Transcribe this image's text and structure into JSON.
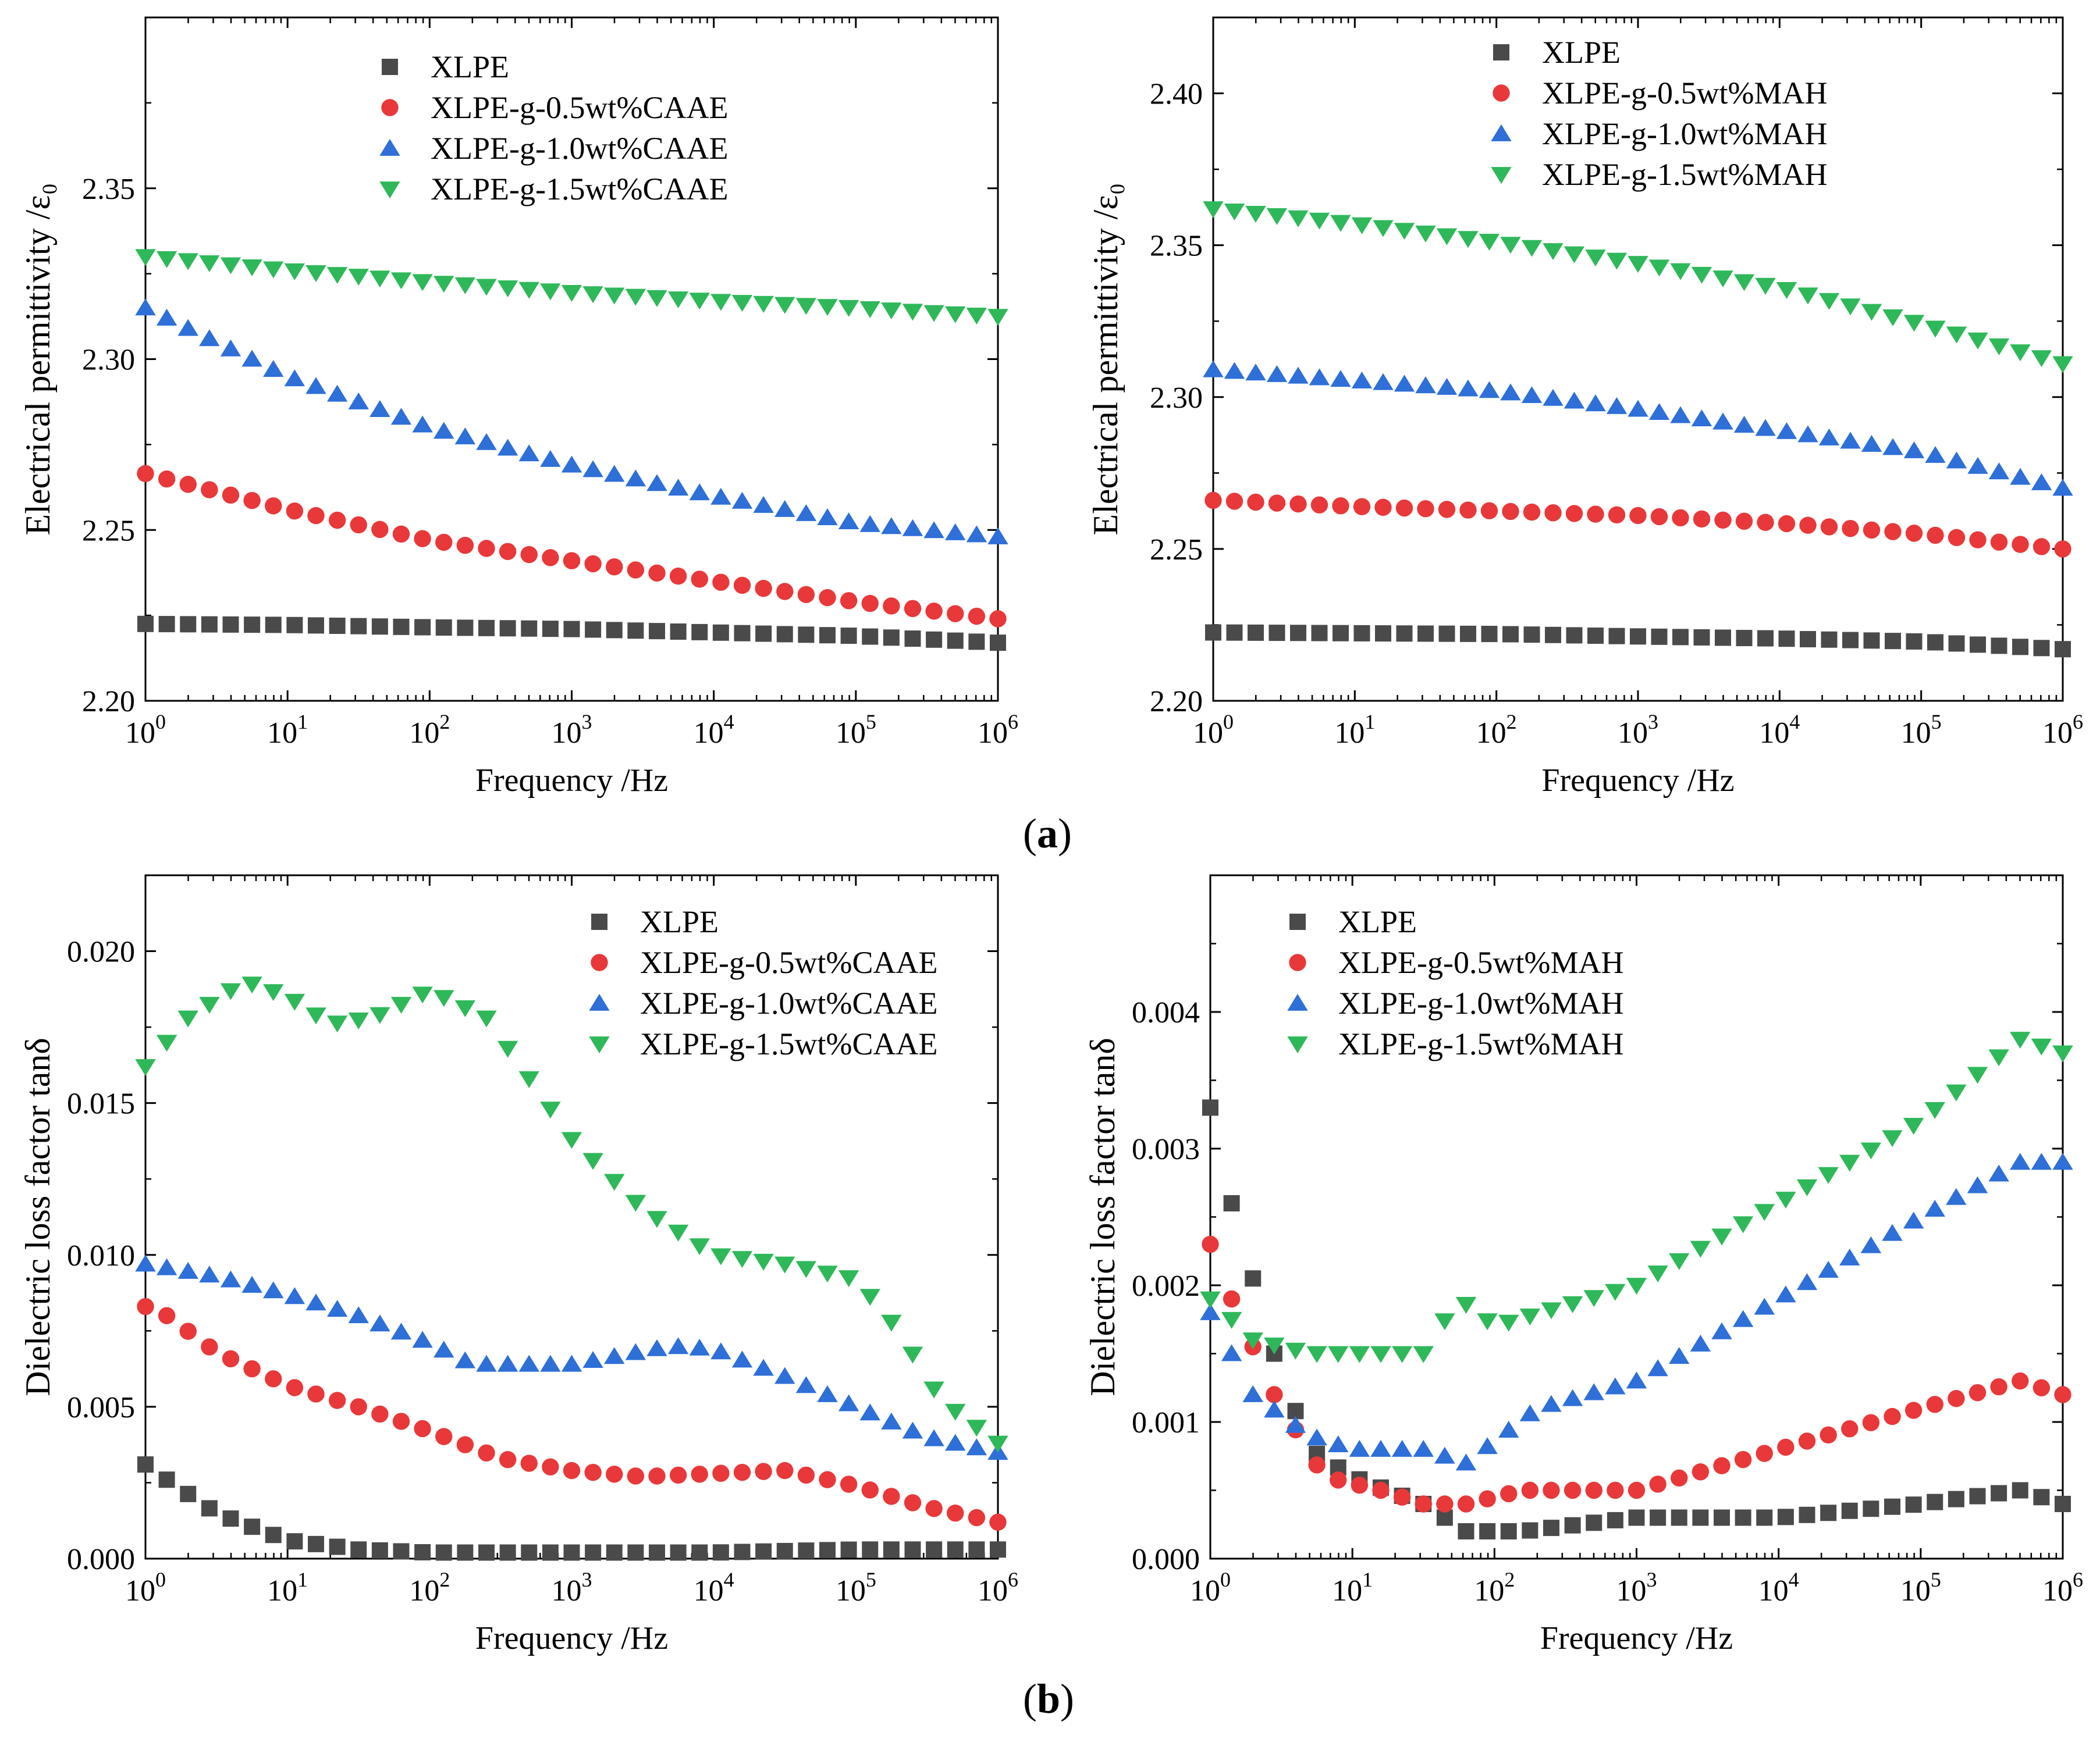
{
  "figure": {
    "panel_a_label": {
      "open": "(",
      "letter": "a",
      "close": ")"
    },
    "panel_b_label": {
      "open": "(",
      "letter": "b",
      "close": ")"
    },
    "marker_colors": {
      "XLPE": "#4a4a4a",
      "0.5": "#e8383a",
      "1.0": "#2e6fd8",
      "1.5": "#2fb85a"
    }
  },
  "chart_data": [
    {
      "id": "a-left",
      "type": "scatter",
      "xscale": "log",
      "xlabel": "Frequency /Hz",
      "ylabel": "Electrical permittivity /ε₀",
      "xlim": [
        1,
        1000000
      ],
      "ylim": [
        2.2,
        2.4
      ],
      "yticks": [
        "2.20",
        "2.25",
        "2.30",
        "2.35"
      ],
      "xticks": [
        {
          "base": "10",
          "exp": "0"
        },
        {
          "base": "10",
          "exp": "1"
        },
        {
          "base": "10",
          "exp": "2"
        },
        {
          "base": "10",
          "exp": "3"
        },
        {
          "base": "10",
          "exp": "4"
        },
        {
          "base": "10",
          "exp": "5"
        },
        {
          "base": "10",
          "exp": "6"
        }
      ],
      "legend_position": "top-left",
      "series": [
        {
          "name": "XLPE",
          "marker": "square",
          "color": "#4a4a4a",
          "x_log": [
            0,
            6
          ],
          "y_knots": [
            [
              0,
              2.2225
            ],
            [
              1,
              2.2222
            ],
            [
              2,
              2.2215
            ],
            [
              3,
              2.221
            ],
            [
              4,
              2.22
            ],
            [
              5,
              2.219
            ],
            [
              6,
              2.217
            ]
          ]
        },
        {
          "name": "XLPE-g-0.5wt%CAAE",
          "marker": "circle",
          "color": "#e8383a",
          "x_log": [
            0,
            6
          ],
          "y_knots": [
            [
              0,
              2.2665
            ],
            [
              1,
              2.256
            ],
            [
              2,
              2.247
            ],
            [
              3,
              2.241
            ],
            [
              4,
              2.235
            ],
            [
              5,
              2.229
            ],
            [
              6,
              2.224
            ]
          ]
        },
        {
          "name": "XLPE-g-1.0wt%CAAE",
          "marker": "triangle-up",
          "color": "#2e6fd8",
          "x_log": [
            0,
            6
          ],
          "y_knots": [
            [
              0,
              2.315
            ],
            [
              1,
              2.295
            ],
            [
              2,
              2.28
            ],
            [
              3,
              2.269
            ],
            [
              4,
              2.26
            ],
            [
              5,
              2.252
            ],
            [
              6,
              2.248
            ]
          ]
        },
        {
          "name": "XLPE-g-1.5wt%CAAE",
          "marker": "triangle-down",
          "color": "#2fb85a",
          "x_log": [
            0,
            6
          ],
          "y_knots": [
            [
              0,
              2.33
            ],
            [
              1,
              2.326
            ],
            [
              2,
              2.3225
            ],
            [
              3,
              2.3195
            ],
            [
              4,
              2.317
            ],
            [
              5,
              2.315
            ],
            [
              6,
              2.3125
            ]
          ]
        }
      ]
    },
    {
      "id": "a-right",
      "type": "scatter",
      "xscale": "log",
      "xlabel": "Frequency /Hz",
      "ylabel": "Electrical permittivity /ε₀",
      "xlim": [
        1,
        1000000
      ],
      "ylim": [
        2.2,
        2.425
      ],
      "yticks": [
        "2.20",
        "2.25",
        "2.30",
        "2.35",
        "2.40"
      ],
      "xticks": [
        {
          "base": "10",
          "exp": "0"
        },
        {
          "base": "10",
          "exp": "1"
        },
        {
          "base": "10",
          "exp": "2"
        },
        {
          "base": "10",
          "exp": "3"
        },
        {
          "base": "10",
          "exp": "4"
        },
        {
          "base": "10",
          "exp": "5"
        },
        {
          "base": "10",
          "exp": "6"
        }
      ],
      "legend_position": "top-center",
      "series": [
        {
          "name": "XLPE",
          "marker": "square",
          "color": "#4a4a4a",
          "x_log": [
            0,
            6
          ],
          "y_knots": [
            [
              0,
              2.2225
            ],
            [
              2,
              2.222
            ],
            [
              3,
              2.2212
            ],
            [
              4,
              2.2205
            ],
            [
              5,
              2.2195
            ],
            [
              6,
              2.217
            ]
          ]
        },
        {
          "name": "XLPE-g-0.5wt%MAH",
          "marker": "circle",
          "color": "#e8383a",
          "x_log": [
            0,
            6
          ],
          "y_knots": [
            [
              0,
              2.266
            ],
            [
              1,
              2.264
            ],
            [
              2,
              2.2625
            ],
            [
              3,
              2.261
            ],
            [
              4,
              2.2585
            ],
            [
              5,
              2.255
            ],
            [
              6,
              2.25
            ]
          ]
        },
        {
          "name": "XLPE-g-1.0wt%MAH",
          "marker": "triangle-up",
          "color": "#2e6fd8",
          "x_log": [
            0,
            6
          ],
          "y_knots": [
            [
              0,
              2.309
            ],
            [
              1,
              2.3055
            ],
            [
              2,
              2.302
            ],
            [
              3,
              2.296
            ],
            [
              4,
              2.289
            ],
            [
              5,
              2.282
            ],
            [
              6,
              2.27
            ]
          ]
        },
        {
          "name": "XLPE-g-1.5wt%MAH",
          "marker": "triangle-down",
          "color": "#2fb85a",
          "x_log": [
            0,
            6
          ],
          "y_knots": [
            [
              0,
              2.362
            ],
            [
              1,
              2.357
            ],
            [
              2,
              2.351
            ],
            [
              3,
              2.344
            ],
            [
              4,
              2.336
            ],
            [
              5,
              2.324
            ],
            [
              6,
              2.311
            ]
          ]
        }
      ]
    },
    {
      "id": "b-left",
      "type": "scatter",
      "xscale": "log",
      "xlabel": "Frequency /Hz",
      "ylabel": "Dielectric loss factor tanδ",
      "xlim": [
        1,
        1000000
      ],
      "ylim": [
        0,
        0.0225
      ],
      "yticks": [
        "0.000",
        "0.005",
        "0.010",
        "0.015",
        "0.020"
      ],
      "xticks": [
        {
          "base": "10",
          "exp": "0"
        },
        {
          "base": "10",
          "exp": "1"
        },
        {
          "base": "10",
          "exp": "2"
        },
        {
          "base": "10",
          "exp": "3"
        },
        {
          "base": "10",
          "exp": "4"
        },
        {
          "base": "10",
          "exp": "5"
        },
        {
          "base": "10",
          "exp": "6"
        }
      ],
      "legend_position": "top-right",
      "series": [
        {
          "name": "XLPE",
          "marker": "square",
          "color": "#4a4a4a",
          "x_log": [
            0,
            6
          ],
          "y_knots": [
            [
              0,
              0.0031
            ],
            [
              0.15,
              0.0026
            ],
            [
              0.5,
              0.0015
            ],
            [
              1,
              0.0006
            ],
            [
              1.5,
              0.0003
            ],
            [
              2,
              0.0002
            ],
            [
              3,
              0.0002
            ],
            [
              4,
              0.0002
            ],
            [
              5,
              0.0003
            ],
            [
              6,
              0.0003
            ]
          ]
        },
        {
          "name": "XLPE-g-0.5wt%CAAE",
          "marker": "circle",
          "color": "#e8383a",
          "x_log": [
            0,
            6
          ],
          "y_knots": [
            [
              0,
              0.0083
            ],
            [
              0.15,
              0.008
            ],
            [
              0.5,
              0.0068
            ],
            [
              1,
              0.0057
            ],
            [
              1.5,
              0.005
            ],
            [
              2,
              0.0042
            ],
            [
              2.5,
              0.0033
            ],
            [
              3,
              0.0029
            ],
            [
              3.5,
              0.0027
            ],
            [
              4,
              0.0028
            ],
            [
              4.5,
              0.0029
            ],
            [
              5,
              0.0024
            ],
            [
              5.5,
              0.0017
            ],
            [
              6,
              0.0012
            ]
          ]
        },
        {
          "name": "XLPE-g-1.0wt%CAAE",
          "marker": "triangle-up",
          "color": "#2e6fd8",
          "x_log": [
            0,
            6
          ],
          "y_knots": [
            [
              0,
              0.0097
            ],
            [
              0.5,
              0.0093
            ],
            [
              1,
              0.0087
            ],
            [
              1.5,
              0.008
            ],
            [
              2,
              0.0071
            ],
            [
              2.3,
              0.0064
            ],
            [
              3,
              0.0064
            ],
            [
              3.7,
              0.007
            ],
            [
              4,
              0.0069
            ],
            [
              4.5,
              0.006
            ],
            [
              5,
              0.005
            ],
            [
              5.5,
              0.004
            ],
            [
              6,
              0.0035
            ]
          ]
        },
        {
          "name": "XLPE-g-1.5wt%CAAE",
          "marker": "triangle-down",
          "color": "#2fb85a",
          "x_log": [
            0,
            6
          ],
          "y_knots": [
            [
              0,
              0.0162
            ],
            [
              0.3,
              0.0178
            ],
            [
              0.7,
              0.019
            ],
            [
              1,
              0.0185
            ],
            [
              1.3,
              0.0176
            ],
            [
              1.6,
              0.0178
            ],
            [
              2,
              0.0187
            ],
            [
              2.4,
              0.0178
            ],
            [
              3,
              0.0138
            ],
            [
              3.5,
              0.0115
            ],
            [
              4,
              0.01
            ],
            [
              4.5,
              0.0097
            ],
            [
              5,
              0.0092
            ],
            [
              5.3,
              0.0075
            ],
            [
              5.6,
              0.0052
            ],
            [
              6,
              0.0038
            ]
          ]
        }
      ]
    },
    {
      "id": "b-right",
      "type": "scatter",
      "xscale": "log",
      "xlabel": "Frequency /Hz",
      "ylabel": "Dielectric loss factor tanδ",
      "xlim": [
        1,
        1000000
      ],
      "ylim": [
        0,
        0.005
      ],
      "yticks": [
        "0.000",
        "0.001",
        "0.002",
        "0.003",
        "0.004"
      ],
      "xticks": [
        {
          "base": "10",
          "exp": "0"
        },
        {
          "base": "10",
          "exp": "1"
        },
        {
          "base": "10",
          "exp": "2"
        },
        {
          "base": "10",
          "exp": "3"
        },
        {
          "base": "10",
          "exp": "4"
        },
        {
          "base": "10",
          "exp": "5"
        },
        {
          "base": "10",
          "exp": "6"
        }
      ],
      "legend_position": "top-center",
      "series": [
        {
          "name": "XLPE",
          "marker": "square",
          "color": "#4a4a4a",
          "x_log": [
            0,
            6
          ],
          "y_knots": [
            [
              0,
              0.0033
            ],
            [
              0.15,
              0.0026
            ],
            [
              0.45,
              0.0015
            ],
            [
              0.7,
              0.0008
            ],
            [
              1,
              0.0006
            ],
            [
              1.5,
              0.0004
            ],
            [
              1.8,
              0.0002
            ],
            [
              2.2,
              0.0002
            ],
            [
              3,
              0.0003
            ],
            [
              4,
              0.0003
            ],
            [
              5,
              0.0004
            ],
            [
              5.7,
              0.0005
            ],
            [
              6,
              0.0004
            ]
          ]
        },
        {
          "name": "XLPE-g-0.5wt%MAH",
          "marker": "circle",
          "color": "#e8383a",
          "x_log": [
            0,
            6
          ],
          "y_knots": [
            [
              0,
              0.0023
            ],
            [
              0.15,
              0.0019
            ],
            [
              0.45,
              0.0012
            ],
            [
              0.8,
              0.0006
            ],
            [
              1.2,
              0.0005
            ],
            [
              1.5,
              0.0004
            ],
            [
              1.8,
              0.0004
            ],
            [
              2.2,
              0.0005
            ],
            [
              3,
              0.0005
            ],
            [
              4,
              0.0008
            ],
            [
              5,
              0.0011
            ],
            [
              5.7,
              0.0013
            ],
            [
              6,
              0.0012
            ]
          ]
        },
        {
          "name": "XLPE-g-1.0wt%MAH",
          "marker": "triangle-up",
          "color": "#2e6fd8",
          "x_log": [
            0,
            6
          ],
          "y_knots": [
            [
              0,
              0.0018
            ],
            [
              0.3,
              0.0012
            ],
            [
              0.7,
              0.0009
            ],
            [
              1,
              0.0008
            ],
            [
              1.5,
              0.0008
            ],
            [
              1.8,
              0.0007
            ],
            [
              2.3,
              0.0011
            ],
            [
              3,
              0.0013
            ],
            [
              4,
              0.0019
            ],
            [
              5,
              0.0025
            ],
            [
              5.7,
              0.0029
            ],
            [
              6,
              0.0029
            ]
          ]
        },
        {
          "name": "XLPE-g-1.5wt%MAH",
          "marker": "triangle-down",
          "color": "#2fb85a",
          "x_log": [
            0,
            6
          ],
          "y_knots": [
            [
              0,
              0.0019
            ],
            [
              0.3,
              0.0016
            ],
            [
              0.7,
              0.0015
            ],
            [
              1,
              0.0015
            ],
            [
              1.5,
              0.0015
            ],
            [
              1.75,
              0.0019
            ],
            [
              2,
              0.0017
            ],
            [
              3,
              0.002
            ],
            [
              4,
              0.0026
            ],
            [
              5,
              0.0032
            ],
            [
              5.7,
              0.0038
            ],
            [
              6,
              0.0037
            ]
          ]
        }
      ]
    }
  ]
}
